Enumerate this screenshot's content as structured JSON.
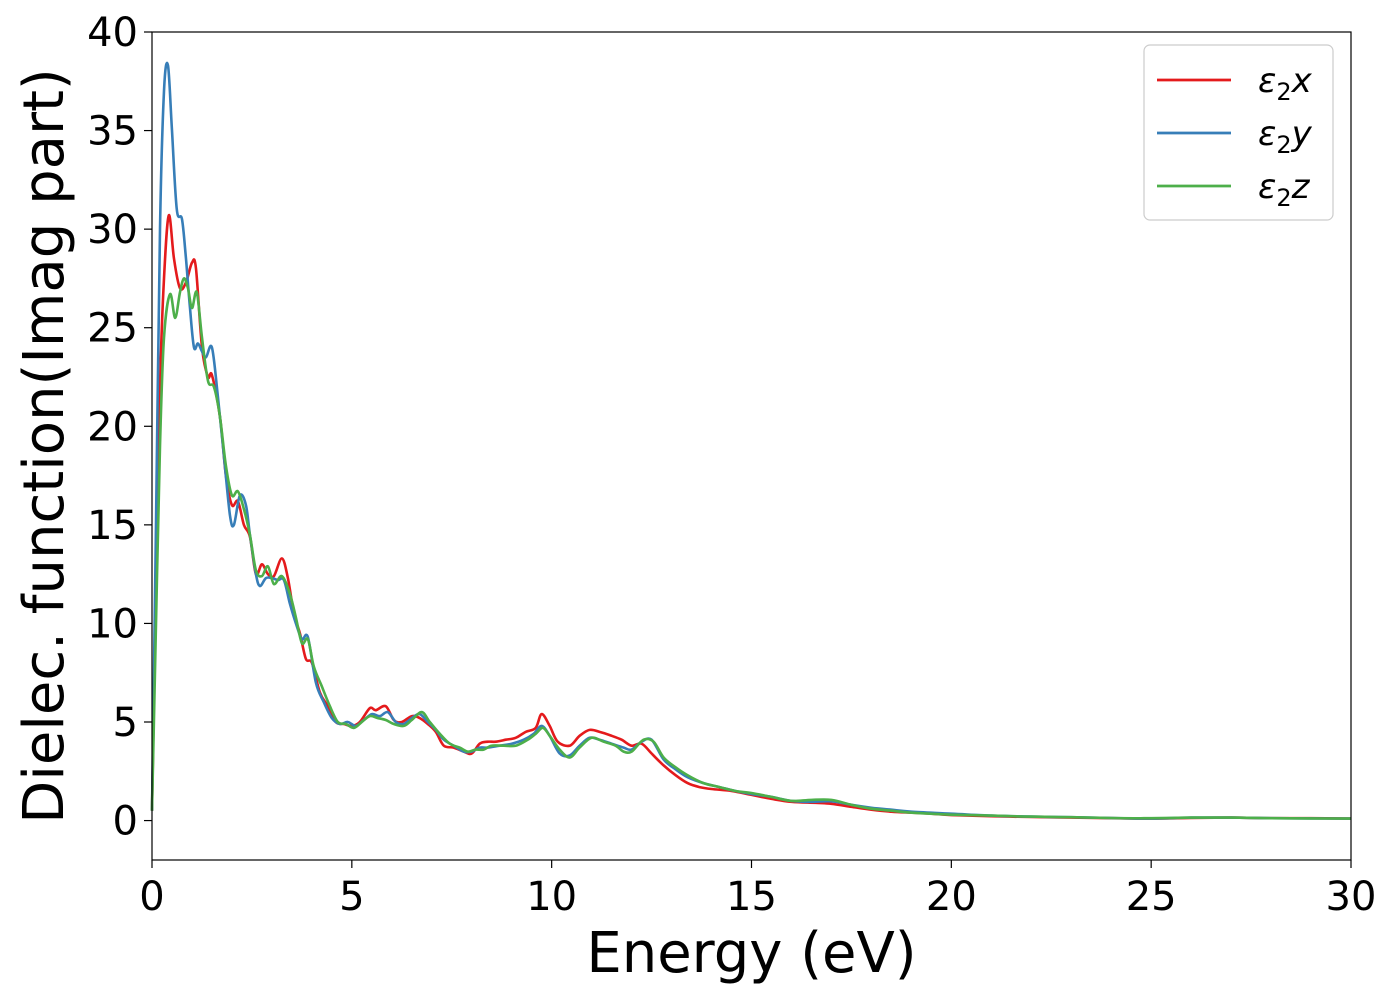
{
  "chart_data": {
    "type": "line",
    "title": "",
    "xlabel": "Energy (eV)",
    "ylabel": "Dielec. function(Imag part)",
    "xlim": [
      0,
      30
    ],
    "ylim": [
      -2,
      40
    ],
    "xticks": [
      0,
      5,
      10,
      15,
      20,
      25,
      30
    ],
    "yticks": [
      0,
      5,
      10,
      15,
      20,
      25,
      30,
      35,
      40
    ],
    "grid": false,
    "legend_position": "top-right",
    "series": [
      {
        "name": "ε2x",
        "name_base": "ε",
        "name_sub": "2",
        "name_suffix": "x",
        "color": "#e41a1c",
        "x": [
          0,
          0.1,
          0.2,
          0.3,
          0.42,
          0.55,
          0.7,
          0.85,
          1.0,
          1.1,
          1.25,
          1.4,
          1.5,
          1.7,
          1.85,
          2.0,
          2.15,
          2.3,
          2.45,
          2.6,
          2.75,
          2.9,
          3.05,
          3.25,
          3.4,
          3.55,
          3.7,
          3.85,
          4.0,
          4.2,
          4.4,
          4.6,
          4.8,
          5.0,
          5.2,
          5.45,
          5.6,
          5.85,
          6.05,
          6.25,
          6.5,
          6.7,
          6.9,
          7.1,
          7.3,
          7.55,
          7.8,
          8.0,
          8.2,
          8.4,
          8.6,
          8.85,
          9.1,
          9.35,
          9.6,
          9.75,
          9.95,
          10.15,
          10.45,
          10.7,
          10.95,
          11.2,
          11.5,
          11.75,
          12.0,
          12.25,
          12.5,
          12.8,
          13.1,
          13.4,
          13.7,
          14.0,
          14.5,
          15.0,
          15.5,
          16.0,
          16.6,
          17.0,
          17.5,
          18.0,
          18.5,
          19.0,
          19.5,
          20.0,
          21.0,
          22.0,
          23.0,
          24.0,
          25.0,
          26.0,
          27.0,
          28.0,
          29.0,
          30.0
        ],
        "y": [
          0.5,
          12,
          22,
          27.5,
          30.7,
          28.5,
          27.0,
          27.3,
          28.3,
          28.0,
          24.0,
          22.5,
          22.6,
          20.5,
          17.5,
          16.0,
          16.2,
          15.0,
          14.4,
          12.5,
          13.0,
          12.5,
          12.4,
          13.3,
          12.3,
          10.5,
          9.5,
          8.2,
          8.0,
          6.5,
          5.8,
          5.0,
          4.9,
          4.8,
          5.0,
          5.7,
          5.6,
          5.8,
          5.1,
          5.0,
          5.3,
          5.2,
          4.9,
          4.5,
          3.8,
          3.7,
          3.5,
          3.4,
          3.9,
          4.0,
          4.0,
          4.1,
          4.2,
          4.5,
          4.7,
          5.4,
          4.8,
          4.0,
          3.8,
          4.3,
          4.6,
          4.5,
          4.3,
          4.1,
          3.8,
          3.9,
          3.4,
          2.8,
          2.3,
          1.9,
          1.7,
          1.6,
          1.5,
          1.3,
          1.1,
          0.95,
          0.9,
          0.85,
          0.7,
          0.55,
          0.45,
          0.4,
          0.35,
          0.28,
          0.22,
          0.18,
          0.15,
          0.12,
          0.1,
          0.13,
          0.15,
          0.12,
          0.12,
          0.1
        ]
      },
      {
        "name": "ε2y",
        "name_base": "ε",
        "name_sub": "2",
        "name_suffix": "y",
        "color": "#377eb8",
        "x": [
          0,
          0.1,
          0.2,
          0.3,
          0.4,
          0.5,
          0.62,
          0.75,
          0.85,
          0.95,
          1.05,
          1.15,
          1.25,
          1.35,
          1.5,
          1.65,
          1.8,
          1.95,
          2.05,
          2.2,
          2.35,
          2.45,
          2.6,
          2.7,
          2.85,
          3.0,
          3.15,
          3.3,
          3.45,
          3.6,
          3.75,
          3.9,
          4.1,
          4.3,
          4.5,
          4.7,
          4.9,
          5.1,
          5.3,
          5.5,
          5.7,
          5.9,
          6.1,
          6.3,
          6.5,
          6.7,
          6.9,
          7.1,
          7.3,
          7.55,
          7.8,
          8.0,
          8.2,
          8.4,
          8.7,
          9.0,
          9.3,
          9.55,
          9.75,
          9.95,
          10.2,
          10.45,
          10.7,
          10.95,
          11.2,
          11.5,
          11.8,
          12.0,
          12.25,
          12.5,
          12.8,
          13.1,
          13.4,
          13.8,
          14.2,
          14.6,
          15.0,
          15.5,
          16.0,
          16.5,
          17.0,
          17.5,
          18.0,
          18.5,
          19.0,
          20.0,
          21.0,
          22.0,
          23.0,
          24.0,
          25.0,
          26.0,
          27.0,
          28.0,
          29.0,
          30.0
        ],
        "y": [
          0.5,
          15,
          30,
          37.0,
          38.3,
          35.0,
          31.0,
          30.5,
          28.5,
          26.0,
          24.0,
          24.2,
          23.8,
          23.5,
          24.0,
          21.5,
          18.5,
          15.5,
          15.0,
          16.5,
          16.0,
          14.5,
          12.5,
          11.9,
          12.3,
          12.3,
          12.2,
          12.2,
          11.0,
          10.0,
          9.2,
          9.3,
          7.0,
          6.0,
          5.2,
          4.9,
          5.0,
          4.8,
          5.1,
          5.4,
          5.3,
          5.5,
          5.0,
          4.9,
          5.2,
          5.4,
          5.0,
          4.6,
          4.1,
          3.8,
          3.5,
          3.5,
          3.7,
          3.7,
          3.8,
          3.9,
          4.1,
          4.4,
          4.8,
          4.3,
          3.4,
          3.3,
          3.8,
          4.2,
          4.1,
          3.9,
          3.7,
          3.6,
          4.0,
          4.1,
          3.1,
          2.6,
          2.2,
          1.9,
          1.7,
          1.5,
          1.35,
          1.2,
          1.0,
          0.95,
          0.98,
          0.8,
          0.65,
          0.55,
          0.45,
          0.35,
          0.25,
          0.2,
          0.17,
          0.13,
          0.1,
          0.15,
          0.15,
          0.12,
          0.11,
          0.1
        ]
      },
      {
        "name": "ε2z",
        "name_base": "ε",
        "name_sub": "2",
        "name_suffix": "z",
        "color": "#4daf4a",
        "x": [
          0,
          0.1,
          0.2,
          0.3,
          0.45,
          0.58,
          0.7,
          0.8,
          0.9,
          1.0,
          1.12,
          1.25,
          1.4,
          1.55,
          1.7,
          1.85,
          2.0,
          2.15,
          2.3,
          2.45,
          2.6,
          2.75,
          2.9,
          3.05,
          3.25,
          3.45,
          3.6,
          3.75,
          3.9,
          4.05,
          4.25,
          4.45,
          4.65,
          4.85,
          5.05,
          5.25,
          5.45,
          5.65,
          5.85,
          6.05,
          6.3,
          6.5,
          6.75,
          6.95,
          7.2,
          7.45,
          7.7,
          7.9,
          8.1,
          8.3,
          8.5,
          8.8,
          9.1,
          9.4,
          9.6,
          9.78,
          9.95,
          10.2,
          10.45,
          10.7,
          11.0,
          11.3,
          11.6,
          11.8,
          12.0,
          12.3,
          12.55,
          12.8,
          13.1,
          13.4,
          13.8,
          14.2,
          14.6,
          15.0,
          15.5,
          16.0,
          16.5,
          17.0,
          17.5,
          18.0,
          18.5,
          19.0,
          20.0,
          21.0,
          22.0,
          23.0,
          24.0,
          25.0,
          26.0,
          27.0,
          28.0,
          29.0,
          30.0
        ],
        "y": [
          0.5,
          10,
          19,
          24.5,
          26.7,
          25.5,
          26.8,
          27.5,
          27.0,
          26.0,
          26.8,
          24.5,
          22.3,
          22.0,
          20.5,
          18.0,
          16.5,
          16.7,
          15.8,
          14.5,
          12.7,
          12.4,
          12.9,
          12.0,
          12.4,
          11.5,
          10.3,
          9.0,
          9.2,
          7.8,
          6.8,
          5.8,
          5.0,
          4.9,
          4.7,
          5.0,
          5.3,
          5.2,
          5.1,
          4.9,
          4.8,
          5.1,
          5.5,
          5.0,
          4.4,
          3.9,
          3.7,
          3.5,
          3.6,
          3.6,
          3.8,
          3.8,
          3.8,
          4.1,
          4.4,
          4.7,
          4.3,
          3.6,
          3.2,
          3.7,
          4.2,
          4.0,
          3.8,
          3.5,
          3.5,
          4.1,
          4.0,
          3.2,
          2.7,
          2.3,
          1.9,
          1.7,
          1.5,
          1.4,
          1.2,
          1.0,
          1.05,
          1.05,
          0.8,
          0.6,
          0.5,
          0.4,
          0.3,
          0.25,
          0.2,
          0.17,
          0.13,
          0.12,
          0.15,
          0.15,
          0.12,
          0.11,
          0.1
        ]
      }
    ]
  }
}
